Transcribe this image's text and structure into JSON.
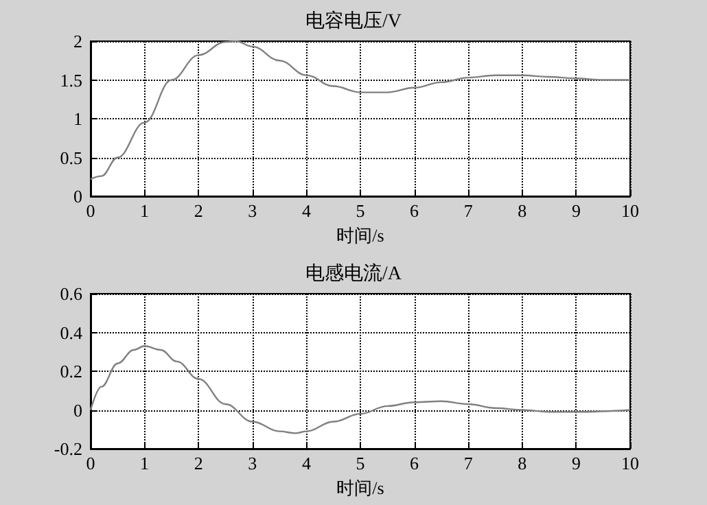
{
  "chart_data": [
    {
      "type": "line",
      "title": "电容电压/V",
      "xlabel": "时间/s",
      "x": [
        0,
        0.2,
        0.5,
        1,
        1.5,
        2,
        2.5,
        2.7,
        3,
        3.5,
        4,
        4.5,
        5,
        5.5,
        6,
        6.5,
        7,
        7.5,
        8,
        8.5,
        9,
        9.5,
        10
      ],
      "series": [
        {
          "color": "#808080",
          "values": [
            0.22,
            0.26,
            0.5,
            0.95,
            1.5,
            1.82,
            1.99,
            2.0,
            1.93,
            1.75,
            1.56,
            1.42,
            1.34,
            1.34,
            1.4,
            1.47,
            1.53,
            1.56,
            1.56,
            1.54,
            1.52,
            1.5,
            1.5
          ]
        }
      ],
      "xlim": [
        0,
        10
      ],
      "xticks": [
        0,
        1,
        2,
        3,
        4,
        5,
        6,
        7,
        8,
        9,
        10
      ],
      "ylim": [
        0,
        2
      ],
      "yticks": [
        0,
        0.5,
        1,
        1.5,
        2
      ],
      "grid": true,
      "marker": "none",
      "line_style": "solid"
    },
    {
      "type": "line",
      "title": "电感电流/A",
      "xlabel": "时间/s",
      "x": [
        0,
        0.2,
        0.5,
        0.8,
        1,
        1.3,
        1.6,
        2,
        2.5,
        3,
        3.5,
        3.8,
        4,
        4.5,
        5,
        5.5,
        6,
        6.5,
        7,
        7.5,
        8,
        8.5,
        9,
        10
      ],
      "series": [
        {
          "color": "#808080",
          "values": [
            0,
            0.12,
            0.24,
            0.31,
            0.33,
            0.31,
            0.25,
            0.16,
            0.03,
            -0.06,
            -0.11,
            -0.12,
            -0.11,
            -0.06,
            -0.02,
            0.02,
            0.04,
            0.045,
            0.03,
            0.01,
            0,
            -0.01,
            -0.01,
            0
          ]
        }
      ],
      "xlim": [
        0,
        10
      ],
      "xticks": [
        0,
        1,
        2,
        3,
        4,
        5,
        6,
        7,
        8,
        9,
        10
      ],
      "ylim": [
        -0.2,
        0.6
      ],
      "yticks": [
        -0.2,
        0,
        0.2,
        0.4,
        0.6
      ],
      "grid": true,
      "marker": "none",
      "line_style": "solid"
    }
  ]
}
